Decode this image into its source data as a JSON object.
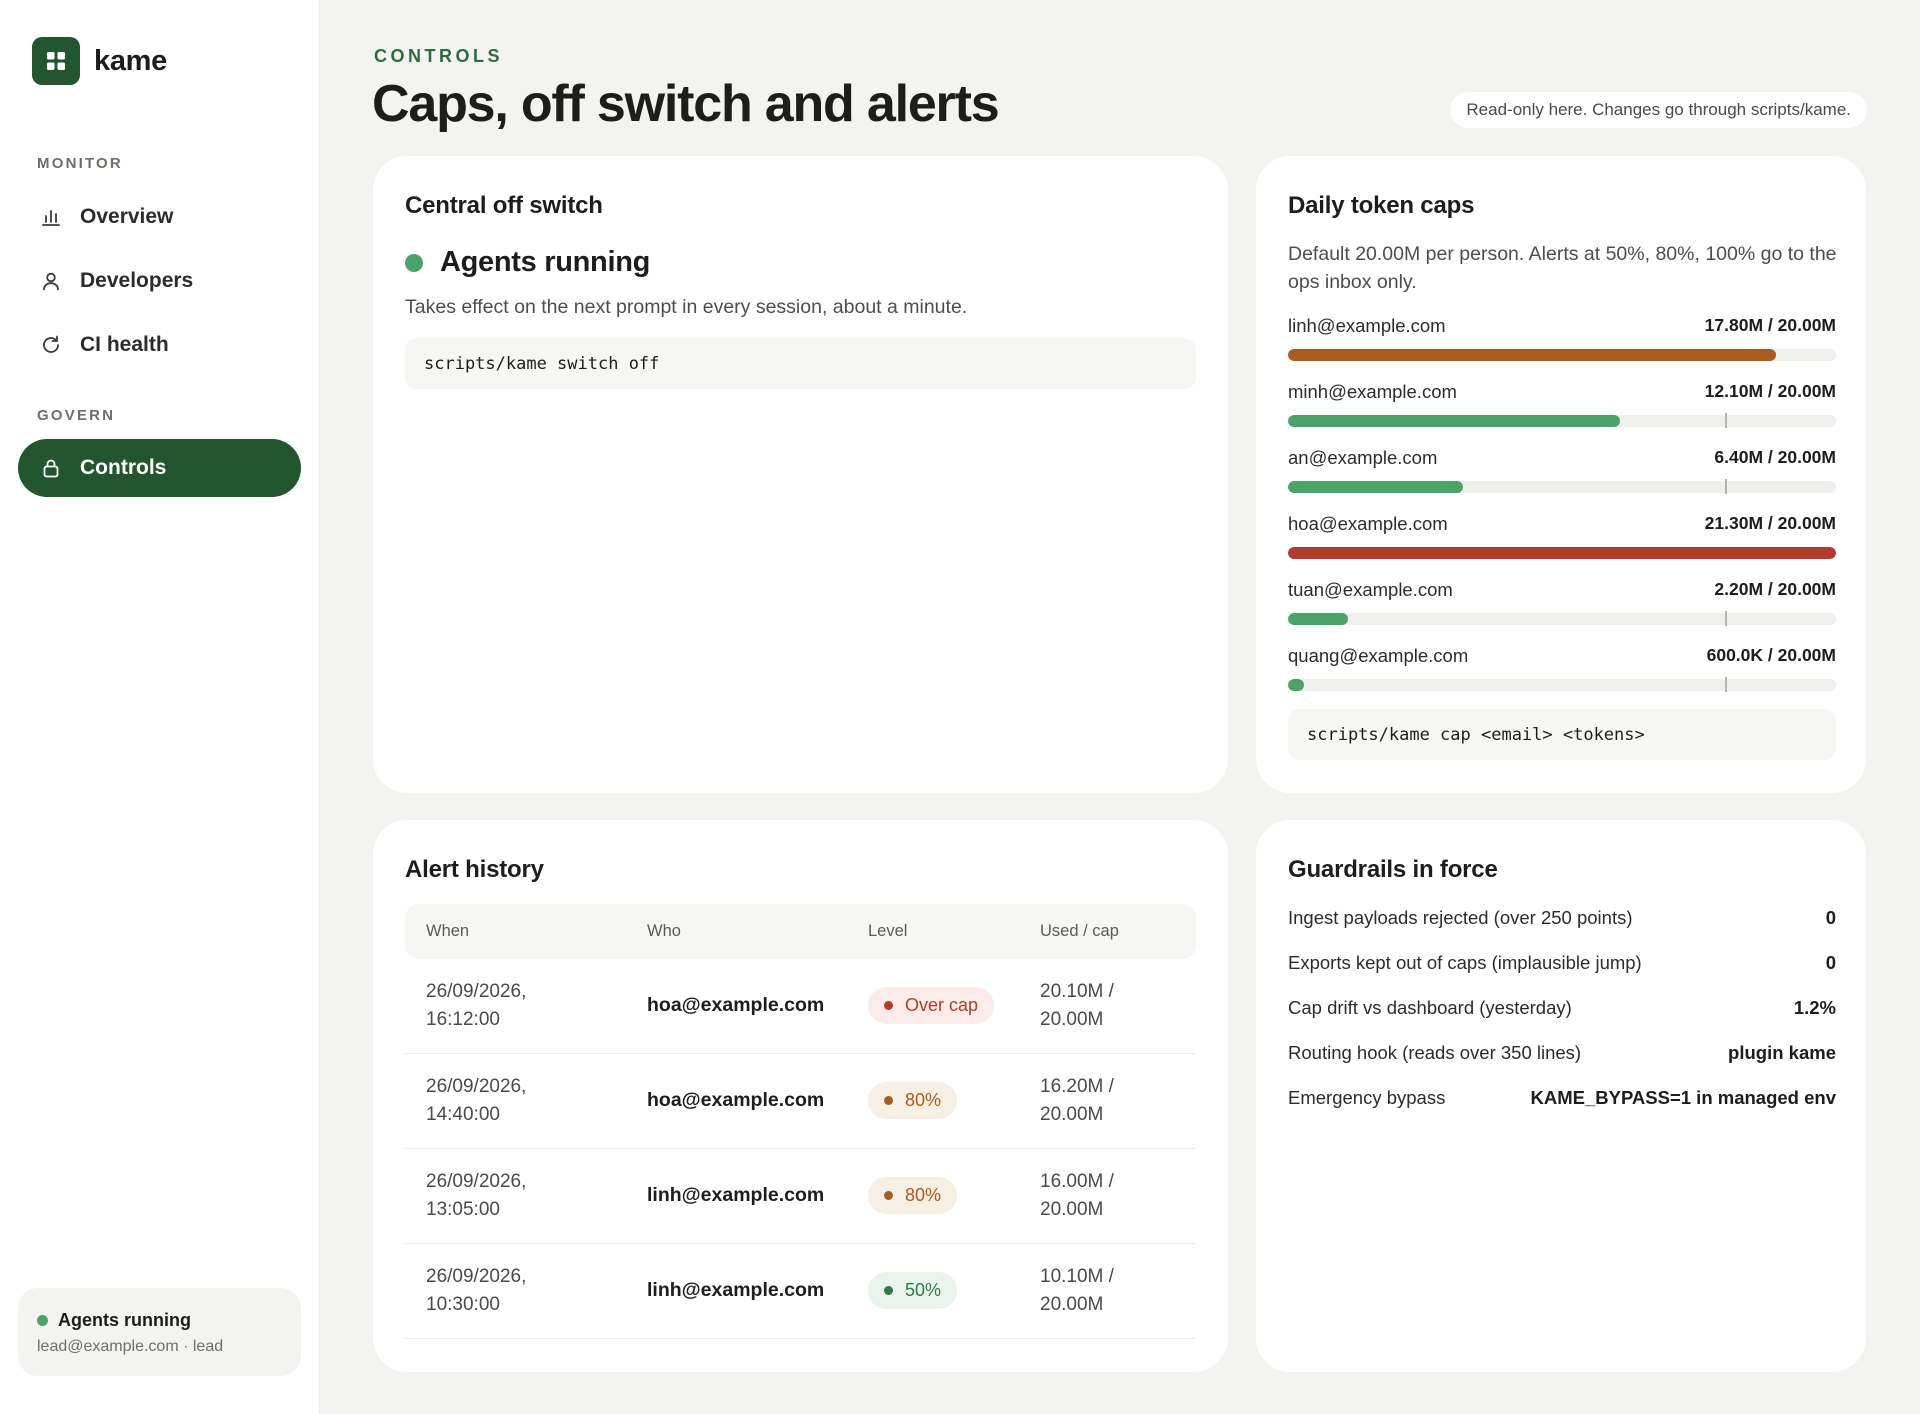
{
  "app": {
    "name": "kame"
  },
  "sidebar": {
    "sections": [
      {
        "label": "MONITOR"
      },
      {
        "label": "GOVERN"
      }
    ],
    "items": [
      {
        "label": "Overview",
        "icon": "bar-chart-icon"
      },
      {
        "label": "Developers",
        "icon": "person-icon"
      },
      {
        "label": "CI health",
        "icon": "refresh-icon"
      },
      {
        "label": "Controls",
        "icon": "lock-icon",
        "active": true
      }
    ],
    "status": {
      "label": "Agents running",
      "account": "lead@example.com · lead",
      "color": "#4ba36a"
    }
  },
  "header": {
    "eyebrow": "CONTROLS",
    "title": "Caps, off switch and alerts",
    "note": "Read-only here. Changes go through scripts/kame."
  },
  "off_switch": {
    "title": "Central off switch",
    "state": "Agents running",
    "description": "Takes effect on the next prompt in every session, about a minute.",
    "command": "scripts/kame switch off"
  },
  "caps": {
    "title": "Daily token caps",
    "description": "Default 20.00M per person. Alerts at 50%, 80%, 100% go to the ops inbox only.",
    "alert_marker_fraction": 0.8,
    "rows": [
      {
        "email": "linh@example.com",
        "used": "17.80M / 20.00M",
        "fraction": 0.89,
        "color": "#a85c1f"
      },
      {
        "email": "minh@example.com",
        "used": "12.10M / 20.00M",
        "fraction": 0.605,
        "color": "#4ba36a"
      },
      {
        "email": "an@example.com",
        "used": "6.40M / 20.00M",
        "fraction": 0.32,
        "color": "#4ba36a"
      },
      {
        "email": "hoa@example.com",
        "used": "21.30M / 20.00M",
        "fraction": 1.0,
        "color": "#b23b2e"
      },
      {
        "email": "tuan@example.com",
        "used": "2.20M / 20.00M",
        "fraction": 0.11,
        "color": "#4ba36a"
      },
      {
        "email": "quang@example.com",
        "used": "600.0K / 20.00M",
        "fraction": 0.03,
        "color": "#4ba36a"
      }
    ],
    "command": "scripts/kame cap <email> <tokens>"
  },
  "alerts": {
    "title": "Alert history",
    "columns": [
      "When",
      "Who",
      "Level",
      "Used / cap"
    ],
    "rows": [
      {
        "when": "26/09/2026, 16:12:00",
        "who": "hoa@example.com",
        "level": "Over cap",
        "used": "20.10M / 20.00M",
        "level_bg": "#fbece9",
        "level_fg": "#b23b2e"
      },
      {
        "when": "26/09/2026, 14:40:00",
        "who": "hoa@example.com",
        "level": "80%",
        "used": "16.20M / 20.00M",
        "level_bg": "#f8efe4",
        "level_fg": "#a85c1f"
      },
      {
        "when": "26/09/2026, 13:05:00",
        "who": "linh@example.com",
        "level": "80%",
        "used": "16.00M / 20.00M",
        "level_bg": "#f8efe4",
        "level_fg": "#a85c1f"
      },
      {
        "when": "26/09/2026, 10:30:00",
        "who": "linh@example.com",
        "level": "50%",
        "used": "10.10M / 20.00M",
        "level_bg": "#e9f4ec",
        "level_fg": "#2f7a48"
      }
    ]
  },
  "guardrails": {
    "title": "Guardrails in force",
    "rows": [
      {
        "label": "Ingest payloads rejected (over 250 points)",
        "value": "0"
      },
      {
        "label": "Exports kept out of caps (implausible jump)",
        "value": "0"
      },
      {
        "label": "Cap drift vs dashboard (yesterday)",
        "value": "1.2%"
      },
      {
        "label": "Routing hook (reads over 350 lines)",
        "value": "plugin kame"
      },
      {
        "label": "Emergency bypass",
        "value": "KAME_BYPASS=1 in managed env"
      }
    ]
  }
}
